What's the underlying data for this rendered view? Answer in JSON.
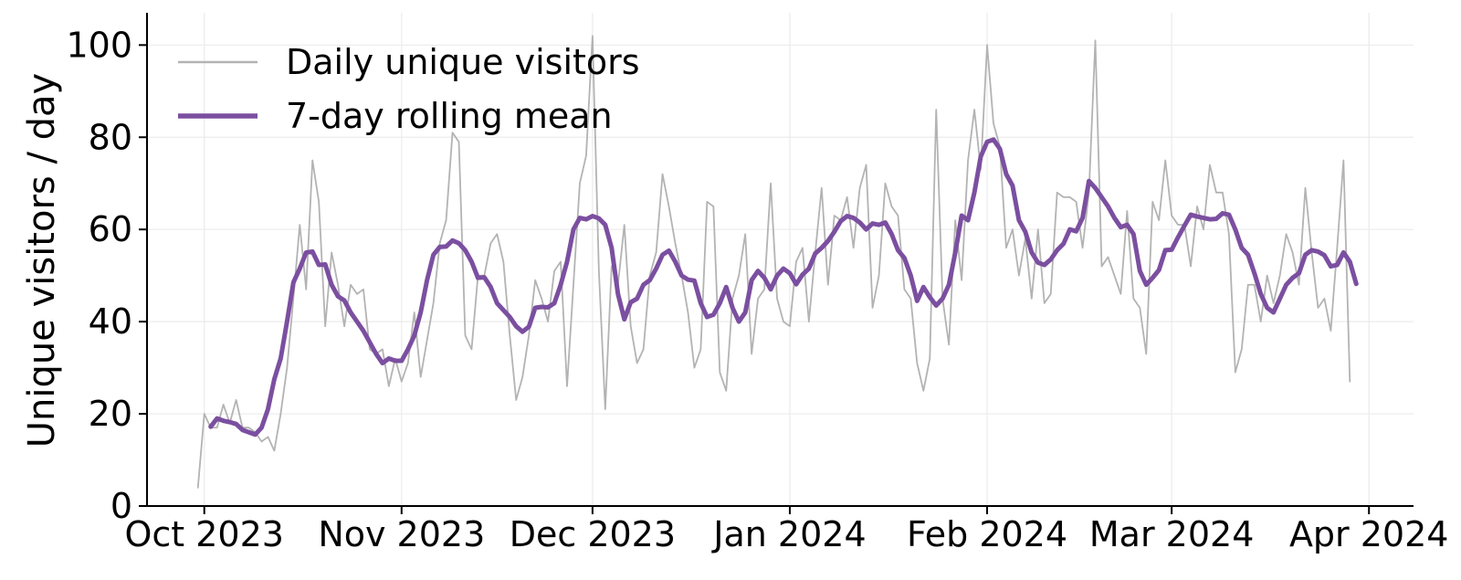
{
  "chart_data": {
    "type": "line",
    "title": "",
    "xlabel": "",
    "ylabel": "Unique visitors / day",
    "ylim": [
      0,
      107
    ],
    "xlim": [
      "2023-09-22",
      "2024-04-08"
    ],
    "yticks": [
      0,
      20,
      40,
      60,
      80,
      100
    ],
    "xticks": [
      {
        "date": "2023-10-01",
        "label": "Oct 2023"
      },
      {
        "date": "2023-11-01",
        "label": "Nov 2023"
      },
      {
        "date": "2023-12-01",
        "label": "Dec 2023"
      },
      {
        "date": "2024-01-01",
        "label": "Jan 2024"
      },
      {
        "date": "2024-02-01",
        "label": "Feb 2024"
      },
      {
        "date": "2024-03-01",
        "label": "Mar 2024"
      },
      {
        "date": "2024-04-01",
        "label": "Apr 2024"
      }
    ],
    "grid": true,
    "legend": "top-left",
    "series": [
      {
        "name": "Daily unique visitors",
        "color": "#b3b3b3",
        "x_start": "2023-09-30",
        "values": [
          4,
          20,
          17,
          17,
          22,
          18,
          23,
          17,
          17,
          16,
          14,
          15,
          12,
          20,
          30,
          45,
          61,
          47,
          75,
          66,
          39,
          55,
          48,
          39,
          48,
          46,
          47,
          34,
          33,
          34,
          26,
          32,
          27,
          31,
          42,
          28,
          36,
          44,
          57,
          62,
          81,
          79,
          37,
          34,
          50,
          50,
          57,
          59,
          53,
          37,
          23,
          28,
          37,
          49,
          45,
          40,
          51,
          53,
          26,
          48,
          70,
          76,
          102,
          51,
          21,
          52,
          48,
          61,
          39,
          31,
          34,
          50,
          55,
          72,
          65,
          57,
          50,
          42,
          30,
          34,
          66,
          65,
          29,
          25,
          45,
          50,
          59,
          33,
          45,
          47,
          70,
          45,
          40,
          39,
          53,
          56,
          40,
          55,
          69,
          48,
          63,
          62,
          67,
          56,
          69,
          74,
          43,
          50,
          70,
          65,
          63,
          47,
          45,
          31,
          25,
          32,
          86,
          45,
          35,
          62,
          49,
          75,
          86,
          73,
          100,
          83,
          78,
          56,
          60,
          50,
          58,
          45,
          60,
          44,
          46,
          68,
          67,
          67,
          66,
          56,
          68,
          101,
          52,
          54,
          50,
          46,
          64,
          45,
          43,
          33,
          66,
          62,
          75,
          63,
          61,
          61,
          52,
          65,
          60,
          74,
          68,
          68,
          59,
          29,
          34,
          48,
          48,
          40,
          50,
          44,
          50,
          59,
          55,
          48,
          69,
          55,
          43,
          45,
          38,
          56,
          75,
          27
        ]
      },
      {
        "name": "7-day rolling mean",
        "color": "#7b4fa0",
        "x_start": "2023-10-02",
        "values": [
          17.2,
          19,
          18.5,
          18.2,
          17.8,
          16.5,
          16,
          15.5,
          17,
          21,
          27.5,
          32,
          40,
          48.5,
          51.5,
          55,
          55.2,
          52.3,
          52.4,
          48,
          45.5,
          44.6,
          42,
          40,
          38,
          35.5,
          33,
          31,
          32,
          31.5,
          31.5,
          34,
          37,
          42,
          49,
          54.5,
          56.2,
          56.3,
          57.6,
          57,
          55.5,
          53,
          49.5,
          49.6,
          47.5,
          44,
          42.5,
          41,
          39,
          37.8,
          38.9,
          43,
          43.2,
          43.1,
          44,
          48,
          53,
          60,
          62.5,
          62.2,
          62.9,
          62.4,
          61,
          56,
          46,
          40.5,
          44.2,
          45,
          48,
          49,
          51.5,
          54.5,
          55.4,
          53,
          50,
          49.1,
          48.9,
          44,
          41,
          41.5,
          44,
          47.5,
          43,
          40,
          42,
          49,
          51,
          49.5,
          47,
          50,
          51.5,
          50.5,
          48.1,
          50.2,
          51.5,
          54.8,
          56,
          57.5,
          59.5,
          61.8,
          62.9,
          62.5,
          61.5,
          60,
          61.3,
          61,
          61.5,
          59,
          55.5,
          53.8,
          50,
          44.5,
          47.5,
          45.3,
          43.5,
          45,
          48,
          55,
          63,
          62,
          68,
          75.8,
          79,
          79.5,
          77.5,
          72,
          69.5,
          62,
          59.5,
          55,
          52.8,
          52.3,
          53.5,
          55.5,
          56.9,
          60,
          59.6,
          62.5,
          70.5,
          69,
          67,
          65,
          62.5,
          60.5,
          61,
          59,
          51,
          48,
          49.5,
          51.2,
          55.5,
          55.6,
          58.3,
          60.8,
          63.2,
          62.8,
          62.5,
          62.2,
          62.3,
          63.5,
          63.2,
          60,
          56,
          54.5,
          50.5,
          46,
          43,
          42,
          45,
          48,
          49.5,
          50.5,
          54.5,
          55.5,
          55.2,
          54.4,
          52,
          52.3,
          55,
          53,
          48.2
        ]
      }
    ]
  }
}
